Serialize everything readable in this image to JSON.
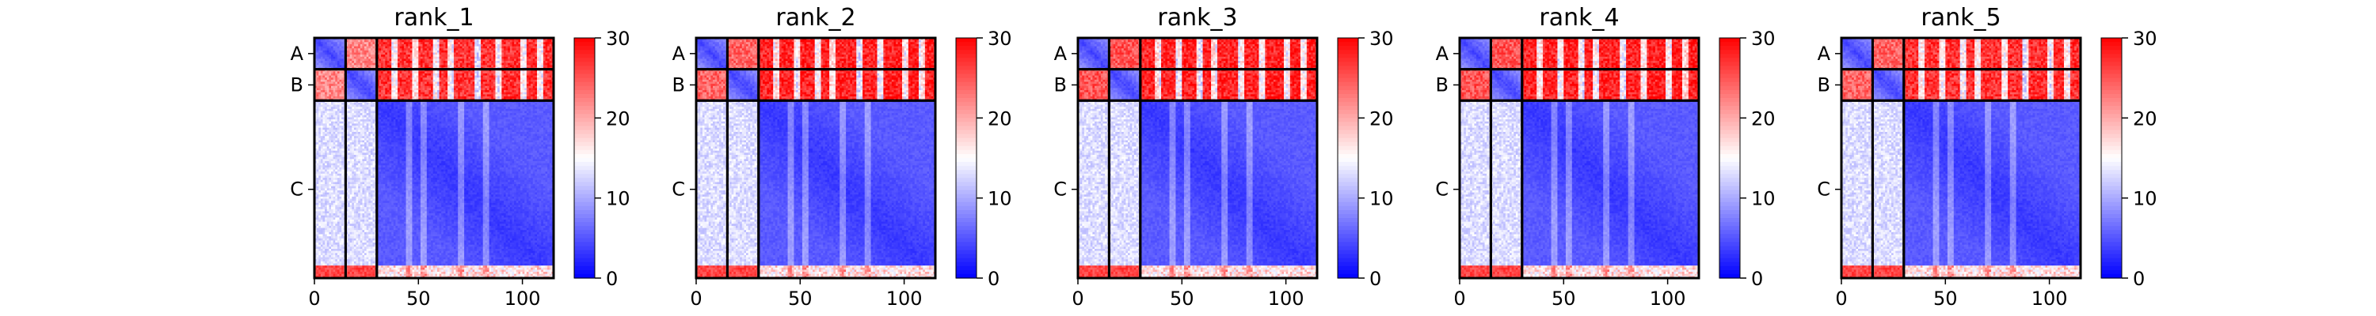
{
  "chart_data": {
    "type": "heatmap",
    "description": "Predicted aligned error (PAE) matrices for 5 ranked models of a 3-chain complex",
    "panels": [
      {
        "title": "rank_1",
        "inter_ab_pae": 22,
        "chain_c_vs_ab_pae": 28
      },
      {
        "title": "rank_2",
        "inter_ab_pae": 24,
        "chain_c_vs_ab_pae": 29
      },
      {
        "title": "rank_3",
        "inter_ab_pae": 25,
        "chain_c_vs_ab_pae": 29
      },
      {
        "title": "rank_4",
        "inter_ab_pae": 25,
        "chain_c_vs_ab_pae": 29
      },
      {
        "title": "rank_5",
        "inter_ab_pae": 24,
        "chain_c_vs_ab_pae": 28
      }
    ],
    "chains": [
      {
        "label": "A",
        "start": 0,
        "end": 15
      },
      {
        "label": "B",
        "start": 15,
        "end": 30
      },
      {
        "label": "C",
        "start": 30,
        "end": 115
      }
    ],
    "xlim": [
      0,
      115
    ],
    "x_ticks": [
      0,
      50,
      100
    ],
    "colorbar": {
      "range": [
        0,
        30
      ],
      "ticks": [
        0,
        10,
        20,
        30
      ],
      "colormap": [
        "#0000ff",
        "#ffffff",
        "#ff0000"
      ]
    },
    "grid": false
  }
}
